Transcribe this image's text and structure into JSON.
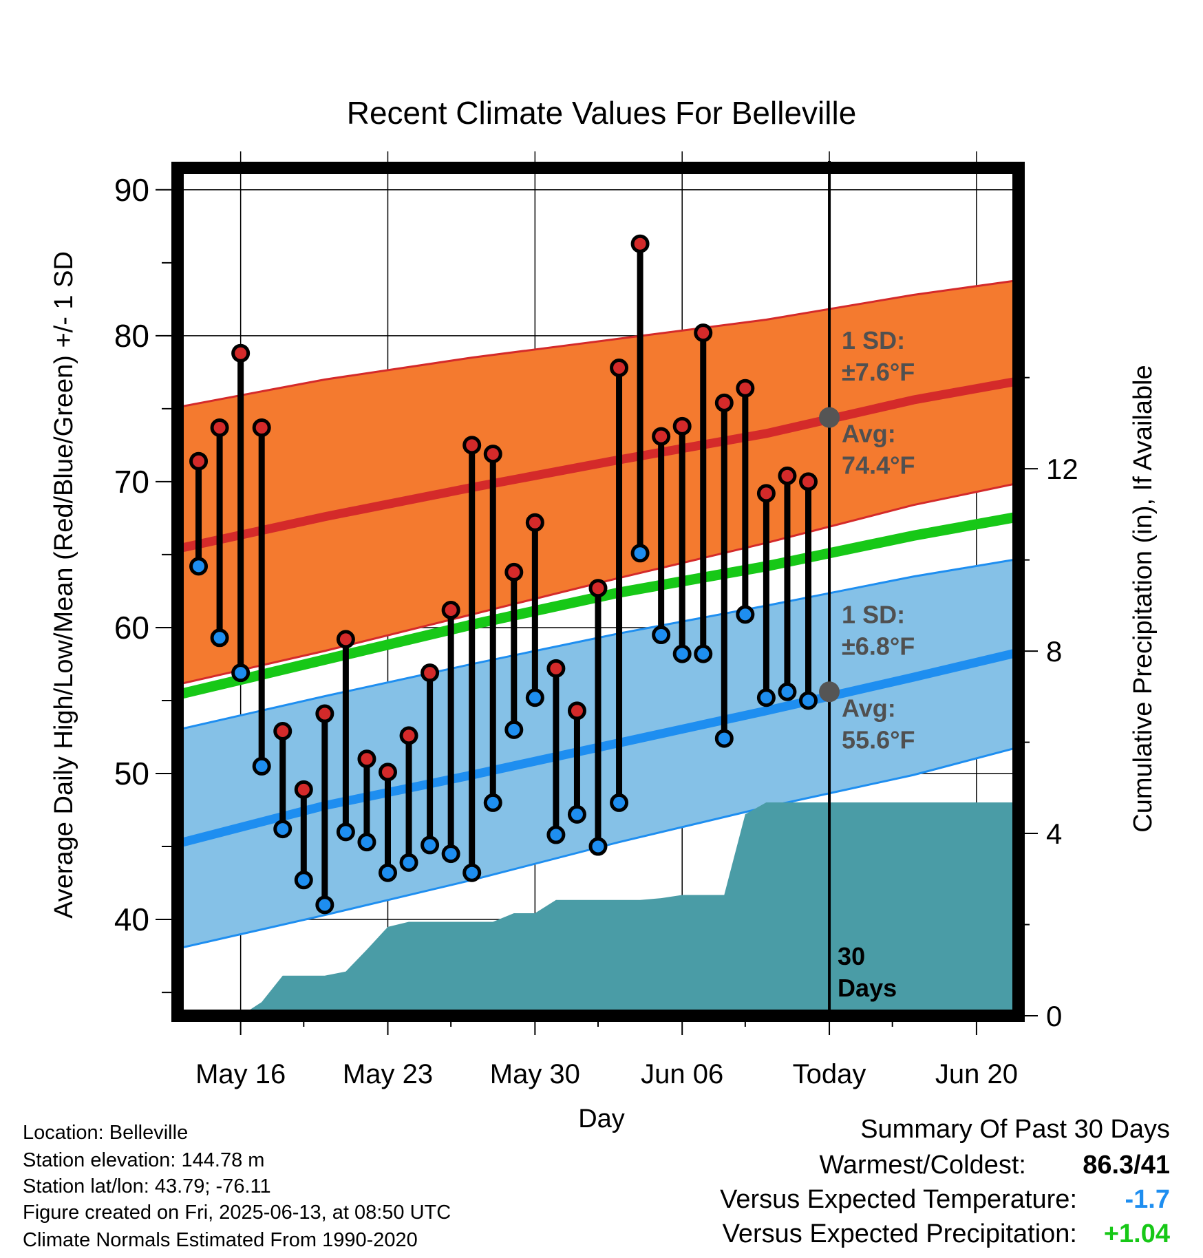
{
  "chart_data": {
    "type": "line",
    "title": "Recent Climate Values For Belleville",
    "xlabel": "Day",
    "ylabel": "Average Daily High/Low/Mean (Red/Blue/Green) +/- 1 SD",
    "y2label": "Cumulative Precipitation (in), If Available",
    "x_tick_labels": [
      "May 16",
      "May 23",
      "May 30",
      "Jun 06",
      "Today",
      "Jun 20"
    ],
    "xlim": [
      "2025-05-13",
      "2025-06-22"
    ],
    "ylim": [
      33.4,
      91.5
    ],
    "y_ticks": [
      40,
      50,
      60,
      70,
      80,
      90
    ],
    "y2lim": [
      0,
      18.6
    ],
    "y2_ticks": [
      0,
      4,
      8,
      12
    ],
    "grid": true,
    "today": "2025-06-13",
    "today_label": "Today",
    "period_label": "30 Days",
    "colors": {
      "high_band": "#f47a2f",
      "high_mean": "#d42a2a",
      "low_band": "#85c1e7",
      "low_mean": "#1e8ef0",
      "mean": "#17c817",
      "precip": "#4a9ca6",
      "today_marker": "#555555",
      "annotation": "#505050"
    },
    "normals": {
      "x": [
        "2025-05-13",
        "2025-05-20",
        "2025-05-27",
        "2025-06-03",
        "2025-06-10",
        "2025-06-17",
        "2025-06-22"
      ],
      "high_avg": [
        65.4,
        67.6,
        69.6,
        71.5,
        73.3,
        75.6,
        76.9
      ],
      "high_upper": [
        75.1,
        77.0,
        78.5,
        79.8,
        81.1,
        82.8,
        83.8
      ],
      "high_lower": [
        56.1,
        58.4,
        60.9,
        63.4,
        65.8,
        68.4,
        69.9
      ],
      "low_avg": [
        45.2,
        47.8,
        49.9,
        52.1,
        54.3,
        56.6,
        58.3
      ],
      "low_upper": [
        53.0,
        55.3,
        57.5,
        59.6,
        61.5,
        63.5,
        64.7
      ],
      "low_lower": [
        38.0,
        40.3,
        42.7,
        45.3,
        47.7,
        49.9,
        51.8
      ],
      "mean": [
        55.4,
        57.8,
        60.2,
        62.4,
        64.2,
        66.3,
        67.6
      ]
    },
    "annotations": {
      "high_sd": {
        "line1": "1 SD:",
        "line2": "±7.6°F"
      },
      "high_avg": {
        "line1": "Avg:",
        "line2": "74.4°F",
        "value": 74.4
      },
      "low_sd": {
        "line1": "1 SD:",
        "line2": "±6.8°F"
      },
      "low_avg": {
        "line1": "Avg:",
        "line2": "55.6°F",
        "value": 55.6
      }
    },
    "daily": {
      "x": [
        "2025-05-14",
        "2025-05-15",
        "2025-05-16",
        "2025-05-17",
        "2025-05-18",
        "2025-05-19",
        "2025-05-20",
        "2025-05-21",
        "2025-05-22",
        "2025-05-23",
        "2025-05-24",
        "2025-05-25",
        "2025-05-26",
        "2025-05-27",
        "2025-05-28",
        "2025-05-29",
        "2025-05-30",
        "2025-05-31",
        "2025-06-01",
        "2025-06-02",
        "2025-06-03",
        "2025-06-04",
        "2025-06-05",
        "2025-06-06",
        "2025-06-07",
        "2025-06-08",
        "2025-06-09",
        "2025-06-10",
        "2025-06-11",
        "2025-06-12"
      ],
      "high": [
        71.4,
        73.7,
        78.8,
        73.7,
        52.9,
        48.9,
        54.1,
        59.2,
        51.0,
        50.1,
        52.6,
        56.9,
        61.2,
        72.5,
        71.9,
        63.8,
        67.2,
        57.2,
        54.3,
        62.7,
        77.8,
        86.3,
        73.1,
        73.8,
        80.2,
        75.4,
        76.4,
        69.2,
        70.4,
        70.0
      ],
      "low": [
        64.2,
        59.3,
        56.9,
        50.5,
        46.2,
        42.7,
        41.0,
        46.0,
        45.3,
        43.2,
        43.9,
        45.1,
        44.5,
        43.2,
        48.0,
        53.0,
        55.2,
        45.8,
        47.2,
        45.0,
        48.0,
        65.1,
        59.5,
        58.2,
        58.2,
        52.4,
        60.9,
        55.2,
        55.6,
        55.0
      ]
    },
    "precip": {
      "x": [
        "2025-05-13",
        "2025-05-16",
        "2025-05-17",
        "2025-05-18",
        "2025-05-19",
        "2025-05-20",
        "2025-05-21",
        "2025-05-22",
        "2025-05-23",
        "2025-05-24",
        "2025-05-25",
        "2025-05-26",
        "2025-05-27",
        "2025-05-28",
        "2025-05-29",
        "2025-05-30",
        "2025-05-31",
        "2025-06-01",
        "2025-06-02",
        "2025-06-03",
        "2025-06-04",
        "2025-06-05",
        "2025-06-06",
        "2025-06-07",
        "2025-06-08",
        "2025-06-09",
        "2025-06-10",
        "2025-06-11",
        "2025-06-12",
        "2025-06-13",
        "2025-06-22"
      ],
      "values": [
        0,
        0,
        0.3,
        0.88,
        0.88,
        0.88,
        0.97,
        1.45,
        1.95,
        2.06,
        2.06,
        2.06,
        2.06,
        2.06,
        2.25,
        2.25,
        2.54,
        2.54,
        2.54,
        2.54,
        2.54,
        2.58,
        2.65,
        2.65,
        2.65,
        4.42,
        4.68,
        4.68,
        4.68,
        4.68,
        4.68
      ]
    }
  },
  "station": {
    "location": "Location: Belleville",
    "elevation": "Station elevation: 144.78 m",
    "latlon": "Station lat/lon: 43.79; -76.11",
    "created": "Figure created on Fri, 2025-06-13, at 08:50 UTC",
    "normals": "Climate Normals Estimated From 1990-2020"
  },
  "summary": {
    "title": "Summary Of Past 30 Days",
    "warmest_coldest_label": "Warmest/Coldest:",
    "warmest_coldest_value": "86.3/41",
    "temp_label": "Versus Expected Temperature:",
    "temp_value": "-1.7",
    "temp_color": "#1e8ef0",
    "precip_label": "Versus Expected Precipitation:",
    "precip_value": "+1.04",
    "precip_color": "#17c817"
  }
}
